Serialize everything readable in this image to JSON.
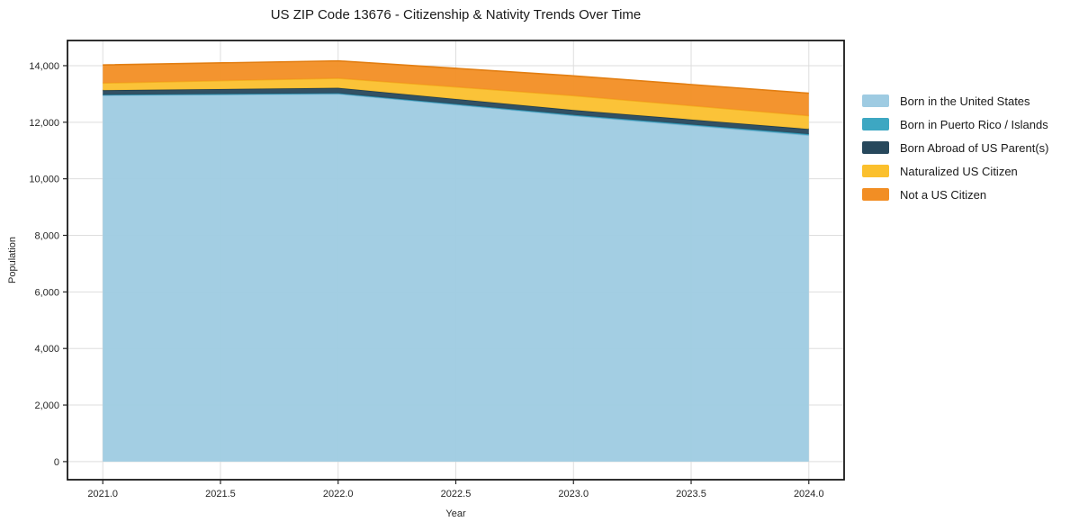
{
  "title": "US ZIP Code 13676 - Citizenship & Nativity Trends Over Time",
  "chart_data": {
    "type": "area",
    "stacked": true,
    "title": "US ZIP Code 13676 - Citizenship & Nativity Trends Over Time",
    "xlabel": "Year",
    "ylabel": "Population",
    "x": [
      2021,
      2022,
      2023,
      2024
    ],
    "series": [
      {
        "name": "Born in the United States",
        "color": "#9ecbe2",
        "edge": "#86b9d6",
        "values": [
          12950,
          13000,
          12230,
          11540
        ]
      },
      {
        "name": "Born in Puerto Rico / Islands",
        "color": "#3da7c2",
        "edge": "#3093b0",
        "values": [
          20,
          25,
          30,
          40
        ]
      },
      {
        "name": "Born Abroad of US Parent(s)",
        "color": "#27485c",
        "edge": "#1e3c4e",
        "values": [
          160,
          190,
          170,
          180
        ]
      },
      {
        "name": "Naturalized US Citizen",
        "color": "#fbc02d",
        "edge": "#f3ae1f",
        "values": [
          255,
          340,
          510,
          470
        ]
      },
      {
        "name": "Not a US Citizen",
        "color": "#f28e24",
        "edge": "#e27e12",
        "values": [
          640,
          615,
          700,
          795
        ]
      }
    ],
    "xticks": [
      2021.0,
      2021.5,
      2022.0,
      2022.5,
      2023.0,
      2023.5,
      2024.0
    ],
    "xtick_labels": [
      "2021.0",
      "2021.5",
      "2022.0",
      "2022.5",
      "2023.0",
      "2023.5",
      "2024.0"
    ],
    "yticks": [
      0,
      2000,
      4000,
      6000,
      8000,
      10000,
      12000,
      14000
    ],
    "ytick_labels": [
      "0",
      "2,000",
      "4,000",
      "6,000",
      "8,000",
      "10,000",
      "12,000",
      "14,000"
    ],
    "xlim": [
      2020.85,
      2024.15
    ],
    "ylim": [
      -640,
      14890
    ],
    "grid": true,
    "legend_position": "outside-right"
  },
  "colors": {
    "background": "#ffffff",
    "grid": "#dedede",
    "frame": "#1a1a1a",
    "tick_text": "#262626",
    "title_text": "#1a1a1a"
  }
}
